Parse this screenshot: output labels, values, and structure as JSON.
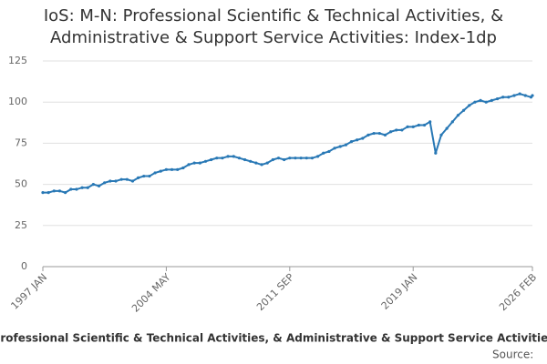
{
  "chart_data": {
    "type": "line",
    "title": "IoS: M-N: Professional Scientific & Technical Activities, & Administrative & Support Service Activities: Index-1dp",
    "x": [
      "1997-01",
      "1997-05",
      "1997-09",
      "1998-01",
      "1998-05",
      "1998-09",
      "1999-01",
      "1999-05",
      "1999-09",
      "2000-01",
      "2000-05",
      "2000-09",
      "2001-01",
      "2001-05",
      "2001-09",
      "2002-01",
      "2002-05",
      "2002-09",
      "2003-01",
      "2003-05",
      "2003-09",
      "2004-01",
      "2004-05",
      "2004-09",
      "2005-01",
      "2005-05",
      "2005-09",
      "2006-01",
      "2006-05",
      "2006-09",
      "2007-01",
      "2007-05",
      "2007-09",
      "2008-01",
      "2008-05",
      "2008-09",
      "2009-01",
      "2009-05",
      "2009-09",
      "2010-01",
      "2010-05",
      "2010-09",
      "2011-01",
      "2011-05",
      "2011-09",
      "2012-01",
      "2012-05",
      "2012-09",
      "2013-01",
      "2013-05",
      "2013-09",
      "2014-01",
      "2014-05",
      "2014-09",
      "2015-01",
      "2015-05",
      "2015-09",
      "2016-01",
      "2016-05",
      "2016-09",
      "2017-01",
      "2017-05",
      "2017-09",
      "2018-01",
      "2018-05",
      "2018-09",
      "2019-01",
      "2019-05",
      "2019-09",
      "2020-01",
      "2020-05",
      "2020-09",
      "2021-01",
      "2021-05",
      "2021-09",
      "2022-01",
      "2022-05",
      "2022-09",
      "2023-01",
      "2023-05",
      "2023-09",
      "2024-01",
      "2024-05",
      "2024-09",
      "2025-01",
      "2025-05",
      "2025-09",
      "2026-01",
      "2026-02"
    ],
    "series": [
      {
        "name": "Professional Scientific & Technical Activities, & Administrative & Support Service Activities",
        "color": "#2878b5",
        "values": [
          45,
          45,
          46,
          46,
          45,
          47,
          47,
          48,
          48,
          50,
          49,
          51,
          52,
          52,
          53,
          53,
          52,
          54,
          55,
          55,
          57,
          58,
          59,
          59,
          59,
          60,
          62,
          63,
          63,
          64,
          65,
          66,
          66,
          67,
          67,
          66,
          65,
          64,
          63,
          62,
          63,
          65,
          66,
          65,
          66,
          66,
          66,
          66,
          66,
          67,
          69,
          70,
          72,
          73,
          74,
          76,
          77,
          78,
          80,
          81,
          81,
          80,
          82,
          83,
          83,
          85,
          85,
          86,
          86,
          88,
          69,
          80,
          84,
          88,
          92,
          95,
          98,
          100,
          101,
          100,
          101,
          102,
          103,
          103,
          104,
          105,
          104,
          103,
          104
        ]
      }
    ],
    "xlim": [
      "1997-01",
      "2026-02"
    ],
    "xticks": [
      {
        "value": "1997-01",
        "label": "1997 JAN"
      },
      {
        "value": "2004-05",
        "label": "2004 MAY"
      },
      {
        "value": "2011-09",
        "label": "2011 SEP"
      },
      {
        "value": "2019-01",
        "label": "2019 JAN"
      },
      {
        "value": "2026-02",
        "label": "2026 FEB"
      }
    ],
    "ylim": [
      0,
      125
    ],
    "yticks": [
      0,
      25,
      50,
      75,
      100,
      125
    ],
    "grid": true,
    "source": "Source:"
  }
}
